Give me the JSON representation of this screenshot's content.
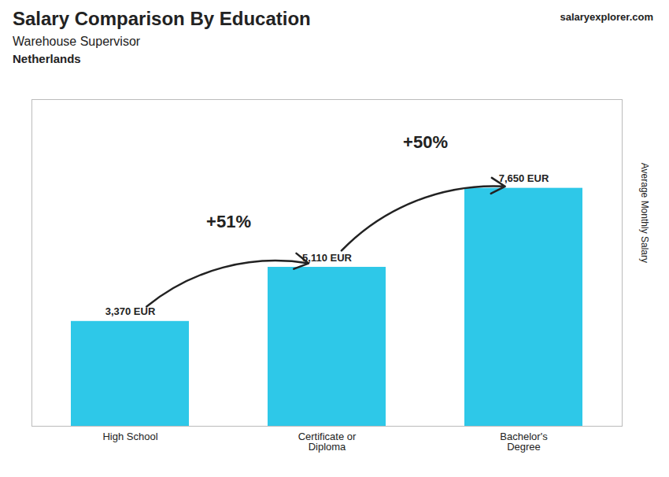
{
  "chart_data": {
    "type": "bar",
    "title": "Salary Comparison By Education",
    "subtitle": [
      "Warehouse Supervisor",
      "Netherlands"
    ],
    "source": "salaryexplorer.com",
    "ylabel": "Average Monthly Salary",
    "categories": [
      "High School",
      "Certificate or\nDiploma",
      "Bachelor's\nDegree"
    ],
    "values": [
      3370,
      5110,
      7650
    ],
    "value_labels": [
      "3,370 EUR",
      "5,110 EUR",
      "7,650 EUR"
    ],
    "data_labels": true,
    "color": "#2ec8e8",
    "ylim": [
      0,
      10500
    ],
    "tick_labels": "x",
    "grid": false,
    "annotations": [
      {
        "text": "+51%",
        "from": "High School",
        "to": "Certificate or\nDiploma"
      },
      {
        "text": "+50%",
        "from": "Certificate or\nDiploma",
        "to": "Bachelor's\nDegree"
      }
    ]
  }
}
